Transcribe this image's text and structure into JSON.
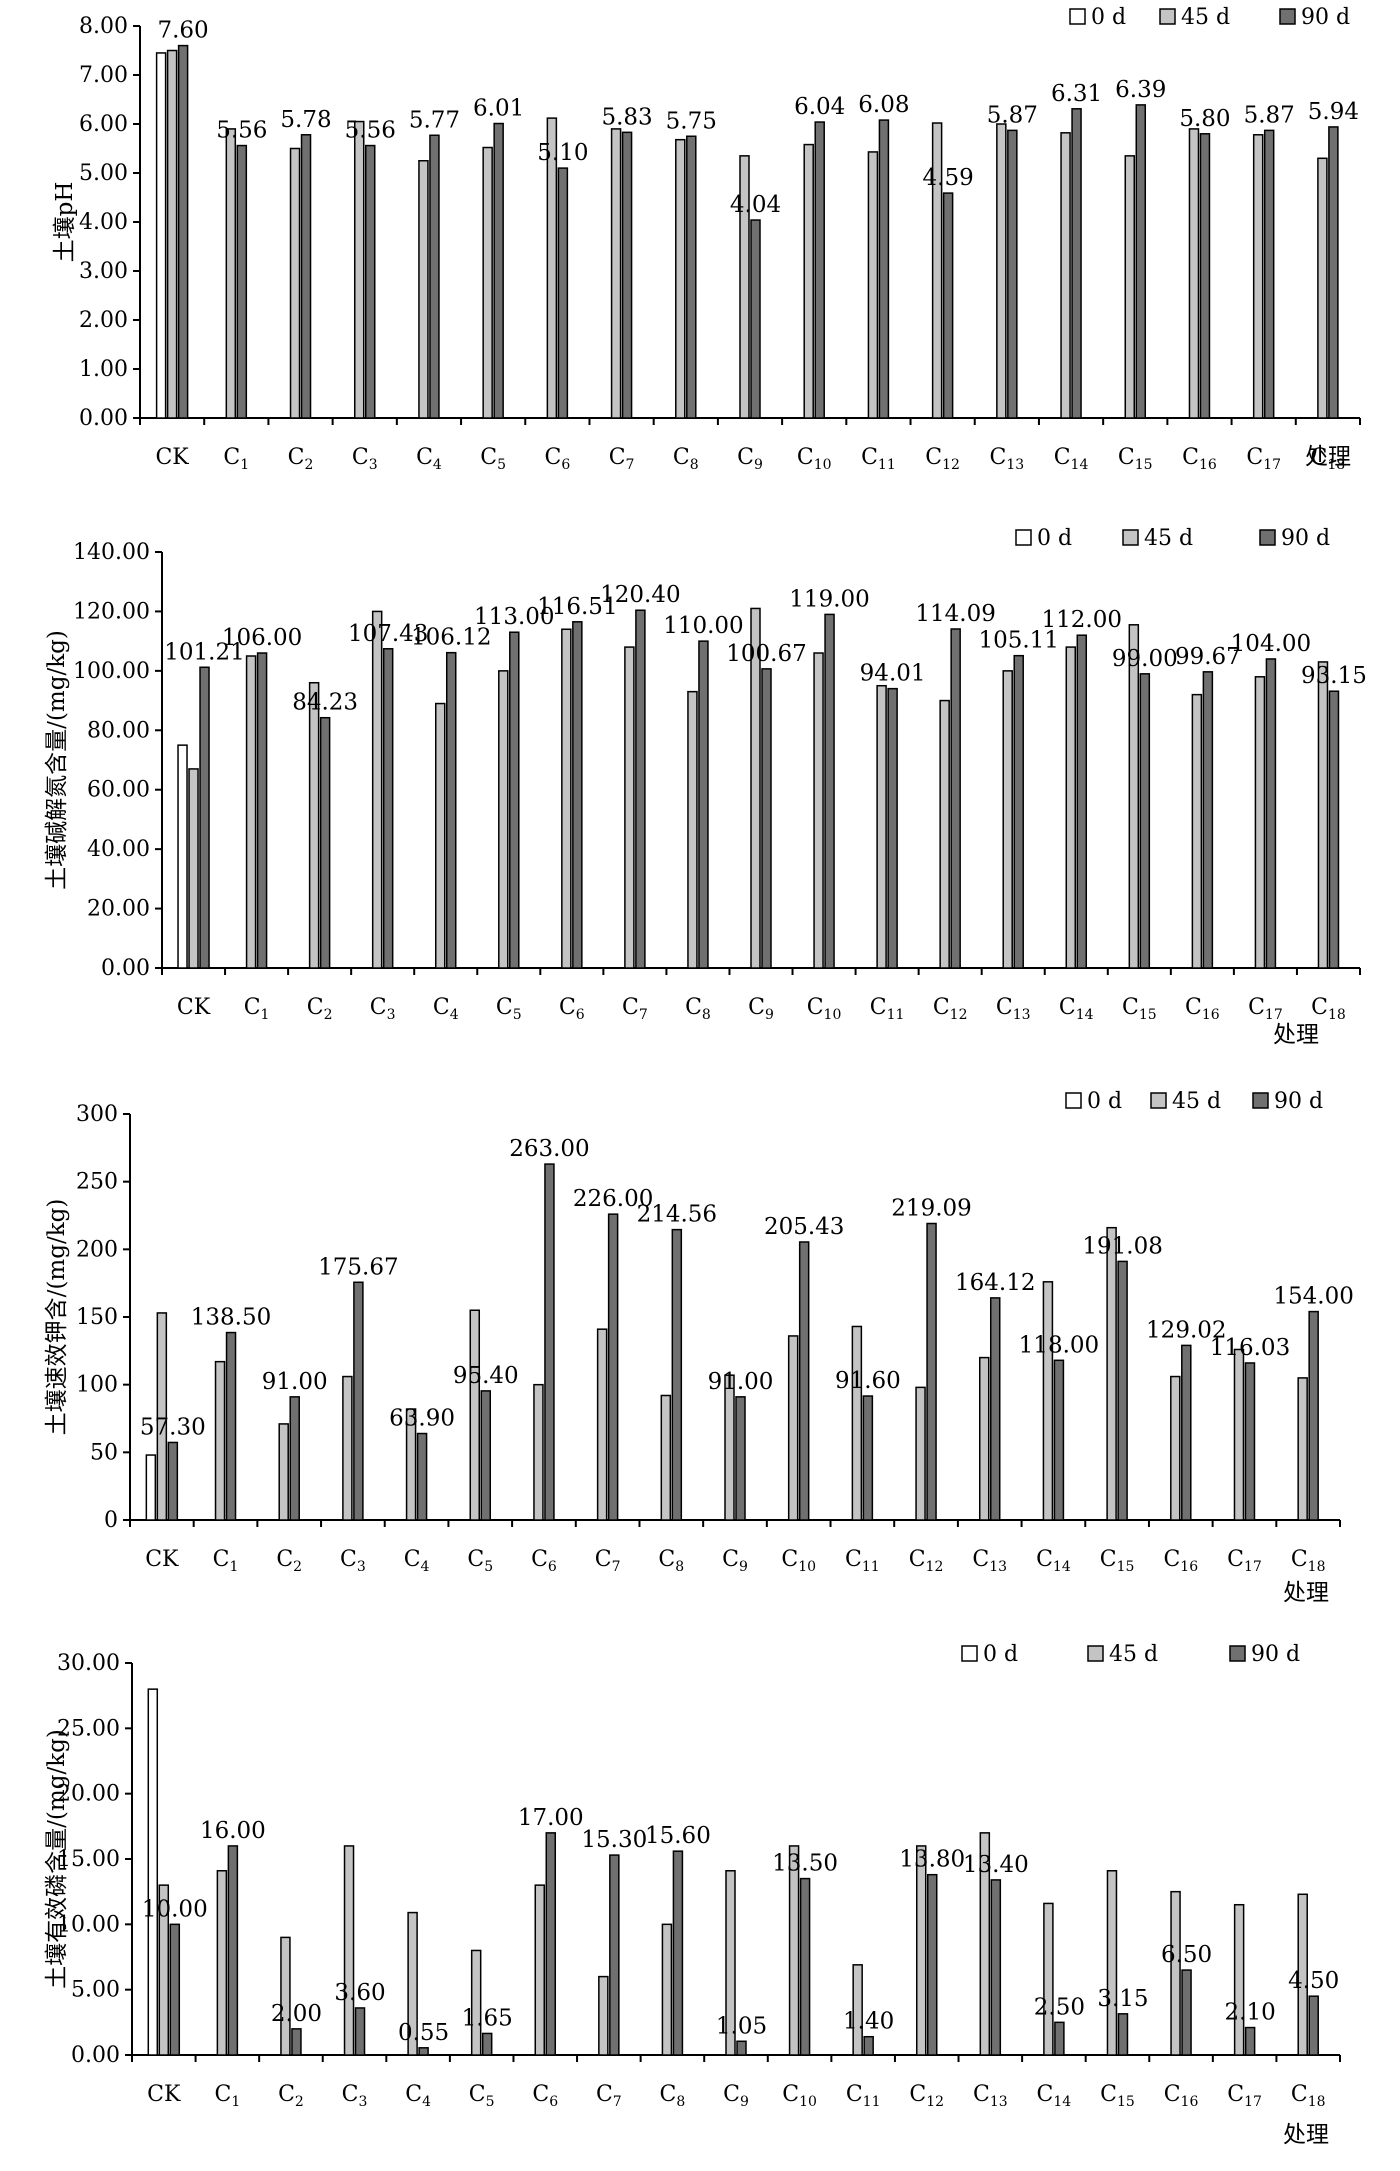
{
  "legend": [
    "0 d",
    "45 d",
    "90 d"
  ],
  "series_colors": [
    "#ffffff",
    "#c4c4c4",
    "#707070"
  ],
  "categories": [
    "CK",
    "C1",
    "C2",
    "C3",
    "C4",
    "C5",
    "C6",
    "C7",
    "C8",
    "C9",
    "C10",
    "C11",
    "C12",
    "C13",
    "C14",
    "C15",
    "C16",
    "C17",
    "C18"
  ],
  "chart_data": [
    {
      "type": "bar",
      "ylabel": "土壤pH",
      "xlabel": "处理",
      "ylim": [
        0,
        8
      ],
      "yticks": [
        "0.00",
        "1.00",
        "2.00",
        "3.00",
        "4.00",
        "5.00",
        "6.00",
        "7.00",
        "8.00"
      ],
      "series": [
        {
          "name": "0 d",
          "values": [
            7.45,
            null,
            null,
            null,
            null,
            null,
            null,
            null,
            null,
            null,
            null,
            null,
            null,
            null,
            null,
            null,
            null,
            null,
            null
          ]
        },
        {
          "name": "45 d",
          "values": [
            7.5,
            5.9,
            5.5,
            6.05,
            5.25,
            5.52,
            6.12,
            5.9,
            5.68,
            5.35,
            5.58,
            5.43,
            6.02,
            6.0,
            5.82,
            5.35,
            5.9,
            5.78,
            5.3
          ]
        },
        {
          "name": "90 d",
          "values": [
            7.6,
            5.56,
            5.78,
            5.56,
            5.77,
            6.01,
            5.1,
            5.83,
            5.75,
            4.04,
            6.04,
            6.08,
            4.59,
            5.87,
            6.31,
            6.39,
            5.8,
            5.87,
            5.94
          ]
        }
      ],
      "labels": [
        "7.60",
        "5.56",
        "5.78",
        "5.56",
        "5.77",
        "6.01",
        "5.10",
        "5.83",
        "5.75",
        "4.04",
        "6.04",
        "6.08",
        "4.59",
        "5.87",
        "6.31",
        "6.39",
        "5.80",
        "5.87",
        "5.94"
      ]
    },
    {
      "type": "bar",
      "ylabel": "土壤碱解氮含量/(mg/kg)",
      "xlabel": "处理",
      "ylim": [
        0,
        140
      ],
      "yticks": [
        "0.00",
        "20.00",
        "40.00",
        "60.00",
        "80.00",
        "100.00",
        "120.00",
        "140.00"
      ],
      "series": [
        {
          "name": "0 d",
          "values": [
            75,
            null,
            null,
            null,
            null,
            null,
            null,
            null,
            null,
            null,
            null,
            null,
            null,
            null,
            null,
            null,
            null,
            null,
            null
          ]
        },
        {
          "name": "45 d",
          "values": [
            67,
            105,
            96,
            120,
            89,
            100,
            114,
            108,
            93,
            121,
            106,
            95,
            90,
            100,
            108,
            115.5,
            92,
            98,
            103
          ]
        },
        {
          "name": "90 d",
          "values": [
            101.21,
            106.0,
            84.23,
            107.43,
            106.12,
            113.0,
            116.51,
            120.4,
            110.0,
            100.67,
            119.0,
            94.01,
            114.09,
            105.11,
            112.0,
            99.0,
            99.67,
            104.0,
            93.15
          ]
        }
      ],
      "labels": [
        "101.21",
        "106.00",
        "84.23",
        "107.43",
        "106.12",
        "113.00",
        "116.51",
        "120.40",
        "110.00",
        "100.67",
        "119.00",
        "94.01",
        "114.09",
        "105.11",
        "112.00",
        "99.00",
        "99.67",
        "104.00",
        "93.15"
      ]
    },
    {
      "type": "bar",
      "ylabel": "土壤速效钾含/(mg/kg)",
      "xlabel": "处理",
      "ylim": [
        0,
        300
      ],
      "yticks": [
        "0",
        "50",
        "100",
        "150",
        "200",
        "250",
        "300"
      ],
      "series": [
        {
          "name": "0 d",
          "values": [
            48,
            null,
            null,
            null,
            null,
            null,
            null,
            null,
            null,
            null,
            null,
            null,
            null,
            null,
            null,
            null,
            null,
            null,
            null
          ]
        },
        {
          "name": "45 d",
          "values": [
            153,
            117,
            71,
            106,
            82,
            155,
            100,
            141,
            92,
            107,
            136,
            143,
            98,
            120,
            176,
            216,
            106,
            126,
            105
          ]
        },
        {
          "name": "90 d",
          "values": [
            57.3,
            138.5,
            91.0,
            175.67,
            63.9,
            95.4,
            263.0,
            226.0,
            214.56,
            91.0,
            205.43,
            91.6,
            219.09,
            164.12,
            118.0,
            191.08,
            129.02,
            116.03,
            154.0
          ]
        }
      ],
      "labels": [
        "57.30",
        "138.50",
        "91.00",
        "175.67",
        "63.90",
        "95.40",
        "263.00",
        "226.00",
        "214.56",
        "91.00",
        "205.43",
        "91.60",
        "219.09",
        "164.12",
        "118.00",
        "191.08",
        "129.02",
        "116.03",
        "154.00"
      ]
    },
    {
      "type": "bar",
      "ylabel": "土壤有效磷含量/(mg/kg)",
      "xlabel": "处理",
      "ylim": [
        0,
        30
      ],
      "yticks": [
        "0.00",
        "5.00",
        "10.00",
        "15.00",
        "20.00",
        "25.00",
        "30.00"
      ],
      "series": [
        {
          "name": "0 d",
          "values": [
            28.0,
            null,
            null,
            null,
            null,
            null,
            null,
            null,
            null,
            null,
            null,
            null,
            null,
            null,
            null,
            null,
            null,
            null,
            null
          ]
        },
        {
          "name": "45 d",
          "values": [
            13.0,
            14.1,
            9.0,
            16.0,
            10.9,
            8.0,
            13.0,
            6.0,
            10.0,
            14.1,
            16.0,
            6.9,
            16.0,
            17.0,
            11.6,
            14.1,
            12.5,
            11.5,
            12.3
          ]
        },
        {
          "name": "90 d",
          "values": [
            10.0,
            16.0,
            2.0,
            3.6,
            0.55,
            1.65,
            17.0,
            15.3,
            15.6,
            1.05,
            13.5,
            1.4,
            13.8,
            13.4,
            2.5,
            3.15,
            6.5,
            2.1,
            4.5
          ]
        }
      ],
      "labels": [
        "10.00",
        "16.00",
        "2.00",
        "3.60",
        "0.55",
        "1.65",
        "17.00",
        "15.30",
        "15.60",
        "1.05",
        "13.50",
        "1.40",
        "13.80",
        "13.40",
        "2.50",
        "3.15",
        "6.50",
        "2.10",
        "4.50"
      ]
    }
  ]
}
